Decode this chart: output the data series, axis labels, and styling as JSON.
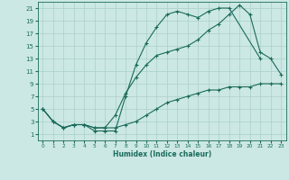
{
  "xlabel": "Humidex (Indice chaleur)",
  "ylabel": "",
  "background_color": "#cce8e4",
  "line_color": "#1a6b5a",
  "grid_color": "#aacfca",
  "xlim": [
    -0.5,
    23.5
  ],
  "ylim": [
    0,
    22
  ],
  "xticks": [
    0,
    1,
    2,
    3,
    4,
    5,
    6,
    7,
    8,
    9,
    10,
    11,
    12,
    13,
    14,
    15,
    16,
    17,
    18,
    19,
    20,
    21,
    22,
    23
  ],
  "yticks": [
    1,
    3,
    5,
    7,
    9,
    11,
    13,
    15,
    17,
    19,
    21
  ],
  "curve1_x": [
    0,
    1,
    2,
    3,
    4,
    5,
    6,
    7,
    8,
    9,
    10,
    11,
    12,
    13,
    14,
    15,
    16,
    17,
    18,
    21
  ],
  "curve1_y": [
    5,
    3,
    2,
    2.5,
    2.5,
    1.5,
    1.5,
    1.5,
    7,
    12,
    15.5,
    18,
    20,
    20.5,
    20,
    19.5,
    20.5,
    21,
    21,
    13
  ],
  "curve2_x": [
    0,
    1,
    2,
    3,
    4,
    5,
    6,
    7,
    8,
    9,
    10,
    11,
    12,
    13,
    14,
    15,
    16,
    17,
    18,
    19,
    20,
    21,
    22,
    23
  ],
  "curve2_y": [
    5,
    3,
    2,
    2.5,
    2.5,
    2,
    2,
    4,
    7.5,
    10,
    12,
    13.5,
    14,
    14.5,
    15,
    16,
    17.5,
    18.5,
    20,
    21.5,
    20,
    14,
    13,
    10.5
  ],
  "curve3_x": [
    0,
    1,
    2,
    3,
    4,
    5,
    6,
    7,
    8,
    9,
    10,
    11,
    12,
    13,
    14,
    15,
    16,
    17,
    18,
    19,
    20,
    21,
    22,
    23
  ],
  "curve3_y": [
    5,
    3,
    2,
    2.5,
    2.5,
    2,
    2,
    2,
    2.5,
    3,
    4,
    5,
    6,
    6.5,
    7,
    7.5,
    8,
    8,
    8.5,
    8.5,
    8.5,
    9,
    9,
    9
  ]
}
